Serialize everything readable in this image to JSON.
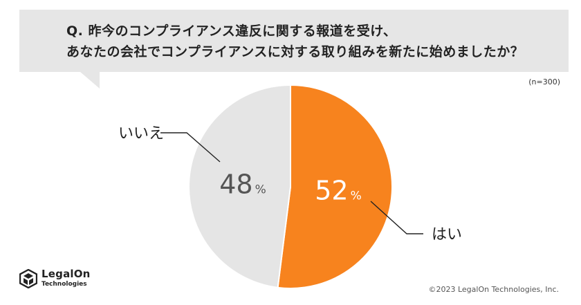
{
  "question": {
    "line1": "Q. 昨今のコンプライアンス違反に関する報道を受け、",
    "line2": "あなたの会社でコンプライアンスに対する取り組みを新たに始めましたか？"
  },
  "sample_size": "(n=300)",
  "chart_data": {
    "type": "pie",
    "title": "Q. 昨今のコンプライアンス違反に関する報道を受け、あなたの会社でコンプライアンスに対する取り組みを新たに始めましたか？",
    "slices": [
      {
        "label": "はい",
        "value": 52,
        "display": "52",
        "color": "#f7831e"
      },
      {
        "label": "いいえ",
        "value": 48,
        "display": "48",
        "color": "#e5e5e5"
      }
    ],
    "unit": "%",
    "start": "12 o'clock",
    "direction": "clockwise",
    "legend": "none"
  },
  "brand": {
    "name": "LegalOn",
    "sub": "Technologies"
  },
  "copyright": "©2023 LegalOn Technologies, Inc.",
  "colors": {
    "yes": "#f7831e",
    "no": "#e5e5e5",
    "bubble": "#e6e6e6",
    "leader": "#222222"
  }
}
